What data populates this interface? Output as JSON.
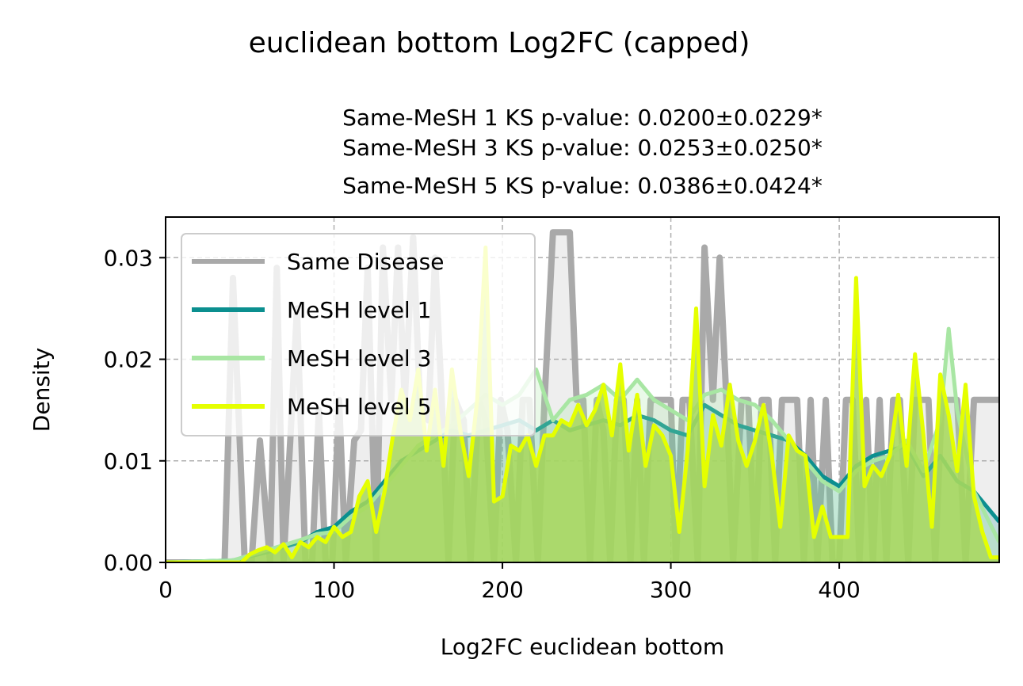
{
  "chart_data": {
    "type": "area",
    "suptitle": "euclidean bottom Log2FC (capped)",
    "subtitle_lines": [
      "Same-MeSH 1 KS p-value: 0.0200±0.0229*",
      "Same-MeSH 3 KS p-value: 0.0253±0.0250*",
      "Same-MeSH 5 KS p-value: 0.0386±0.0424*"
    ],
    "xlabel": "Log2FC euclidean bottom",
    "ylabel": "Density",
    "xlim": [
      0,
      495
    ],
    "ylim": [
      0,
      0.034
    ],
    "xticks": [
      0,
      100,
      200,
      300,
      400
    ],
    "xtick_labels": [
      "0",
      "100",
      "200",
      "300",
      "400"
    ],
    "yticks": [
      0,
      0.01,
      0.02,
      0.03
    ],
    "ytick_labels": [
      "0.00",
      "0.01",
      "0.02",
      "0.03"
    ],
    "grid": true,
    "legend_position": "upper-left",
    "series": [
      {
        "name": "Same Disease",
        "color": "#a9a9a9",
        "fill": "#a9a9a9",
        "fill_opacity": 0.2,
        "x": [
          0,
          35,
          40,
          44,
          47,
          51,
          56,
          62,
          66,
          70,
          74,
          78,
          83,
          87,
          91,
          95,
          99,
          103,
          107,
          112,
          116,
          120,
          125,
          129,
          134,
          138,
          142,
          147,
          151,
          156,
          160,
          164,
          168,
          172,
          177,
          181,
          186,
          190,
          195,
          199,
          203,
          208,
          212,
          216,
          221,
          225,
          230,
          232,
          240,
          244,
          248,
          252,
          256,
          260,
          264,
          268,
          272,
          276,
          280,
          284,
          288,
          292,
          300,
          303,
          307,
          311,
          316,
          320,
          325,
          329,
          333,
          337,
          342,
          346,
          350,
          354,
          358,
          362,
          366,
          371,
          375,
          379,
          383,
          387,
          392,
          396,
          400,
          404,
          408,
          412,
          416,
          420,
          424,
          428,
          432,
          436,
          441,
          445,
          449,
          453,
          457,
          461,
          465,
          470,
          475,
          480,
          485,
          490,
          495
        ],
        "y": [
          0,
          0,
          0.028,
          0.012,
          0,
          0,
          0.012,
          0,
          0.029,
          0,
          0.012,
          0.025,
          0,
          0,
          0.015,
          0,
          0,
          0.016,
          0,
          0.012,
          0.013,
          0.029,
          0,
          0.031,
          0.016,
          0.031,
          0.016,
          0.032,
          0.016,
          0.014,
          0.03,
          0.016,
          0,
          0.016,
          0.014,
          0,
          0.016,
          0.014,
          0,
          0.016,
          0.013,
          0,
          0.016,
          0.016,
          0,
          0.016,
          0.0325,
          0.0325,
          0.0325,
          0.016,
          0.016,
          0,
          0.016,
          0.013,
          0,
          0.016,
          0.016,
          0,
          0.016,
          0,
          0.016,
          0.016,
          0.016,
          0,
          0.016,
          0.016,
          0,
          0.031,
          0.016,
          0.03,
          0.016,
          0,
          0.016,
          0.016,
          0,
          0.016,
          0.016,
          0,
          0.016,
          0.016,
          0.016,
          0,
          0.016,
          0,
          0.016,
          0,
          0,
          0.016,
          0.016,
          0,
          0.016,
          0,
          0.016,
          0,
          0.016,
          0.016,
          0,
          0.016,
          0.016,
          0.016,
          0,
          0.016,
          0.016,
          0.016,
          0,
          0.016,
          0.016,
          0.016,
          0.016
        ]
      },
      {
        "name": "MeSH level 1",
        "color": "#0b8f8f",
        "fill": "#0b8f8f",
        "fill_opacity": 0.2,
        "x": [
          0,
          40,
          60,
          80,
          90,
          100,
          110,
          120,
          130,
          140,
          150,
          160,
          170,
          180,
          190,
          200,
          210,
          220,
          230,
          240,
          250,
          260,
          270,
          280,
          290,
          300,
          310,
          320,
          330,
          340,
          350,
          360,
          370,
          380,
          390,
          400,
          410,
          420,
          430,
          440,
          450,
          460,
          470,
          480,
          495
        ],
        "y": [
          0,
          0.0002,
          0.001,
          0.002,
          0.003,
          0.0035,
          0.005,
          0.006,
          0.008,
          0.01,
          0.011,
          0.012,
          0.013,
          0.0125,
          0.013,
          0.0135,
          0.014,
          0.013,
          0.014,
          0.013,
          0.0135,
          0.014,
          0.0135,
          0.0145,
          0.014,
          0.013,
          0.0125,
          0.0155,
          0.0145,
          0.0135,
          0.013,
          0.0125,
          0.012,
          0.0105,
          0.0085,
          0.0075,
          0.0095,
          0.0105,
          0.011,
          0.0115,
          0.0085,
          0.0105,
          0.008,
          0.007,
          0.004
        ]
      },
      {
        "name": "MeSH level 3",
        "color": "#a8e6a3",
        "fill": "#a8e6a3",
        "fill_opacity": 0.25,
        "x": [
          0,
          40,
          60,
          80,
          90,
          100,
          110,
          120,
          130,
          140,
          150,
          160,
          170,
          180,
          190,
          200,
          210,
          220,
          230,
          240,
          250,
          260,
          270,
          280,
          290,
          300,
          310,
          320,
          330,
          340,
          350,
          360,
          370,
          380,
          390,
          400,
          410,
          420,
          430,
          440,
          450,
          460,
          465,
          470,
          480,
          495
        ],
        "y": [
          0,
          0.0002,
          0.0012,
          0.0022,
          0.0028,
          0.003,
          0.0045,
          0.0055,
          0.0075,
          0.0095,
          0.0115,
          0.0125,
          0.0135,
          0.015,
          0.0165,
          0.0155,
          0.0165,
          0.019,
          0.014,
          0.016,
          0.0165,
          0.0175,
          0.016,
          0.018,
          0.016,
          0.015,
          0.014,
          0.0165,
          0.017,
          0.016,
          0.0155,
          0.014,
          0.012,
          0.01,
          0.008,
          0.007,
          0.009,
          0.01,
          0.0105,
          0.012,
          0.009,
          0.014,
          0.023,
          0.015,
          0.007,
          0.002
        ]
      },
      {
        "name": "MeSH level 5",
        "color": "#e5ff00",
        "fill": "#a8d85a",
        "fill_opacity": 0.85,
        "x": [
          0,
          45,
          50,
          55,
          60,
          65,
          70,
          75,
          80,
          85,
          90,
          95,
          100,
          105,
          110,
          115,
          120,
          125,
          130,
          135,
          140,
          145,
          150,
          155,
          160,
          165,
          170,
          175,
          180,
          185,
          190,
          195,
          200,
          205,
          210,
          215,
          220,
          225,
          230,
          235,
          240,
          245,
          250,
          255,
          260,
          265,
          270,
          275,
          280,
          285,
          290,
          295,
          300,
          305,
          310,
          315,
          320,
          325,
          330,
          335,
          340,
          345,
          350,
          355,
          360,
          365,
          370,
          375,
          380,
          385,
          390,
          395,
          400,
          405,
          410,
          415,
          420,
          425,
          430,
          435,
          440,
          445,
          450,
          455,
          460,
          465,
          470,
          475,
          480,
          485,
          490,
          495
        ],
        "y": [
          0,
          0,
          0.0008,
          0.0012,
          0.0015,
          0.001,
          0.0018,
          0.0005,
          0.002,
          0.0015,
          0.0025,
          0.002,
          0.0035,
          0.0025,
          0.003,
          0.0065,
          0.008,
          0.003,
          0.007,
          0.0125,
          0.017,
          0.014,
          0.019,
          0.011,
          0.017,
          0.0095,
          0.019,
          0.013,
          0.0085,
          0.016,
          0.031,
          0.006,
          0.0065,
          0.0115,
          0.011,
          0.0125,
          0.0095,
          0.0125,
          0.0125,
          0.014,
          0.0135,
          0.0155,
          0.0135,
          0.015,
          0.0175,
          0.0125,
          0.0195,
          0.011,
          0.0165,
          0.0095,
          0.0135,
          0.0125,
          0.0105,
          0.003,
          0.011,
          0.025,
          0.0075,
          0.0145,
          0.0115,
          0.0175,
          0.012,
          0.0095,
          0.012,
          0.0155,
          0.0105,
          0.0035,
          0.0125,
          0.011,
          0.0105,
          0.0025,
          0.0055,
          0.0025,
          0.0025,
          0.0025,
          0.028,
          0.0075,
          0.0095,
          0.0085,
          0.0105,
          0.0165,
          0.0095,
          0.0205,
          0.0125,
          0.0035,
          0.0185,
          0.0145,
          0.009,
          0.0175,
          0.0065,
          0.003,
          0.0005,
          0.0005
        ]
      }
    ]
  }
}
